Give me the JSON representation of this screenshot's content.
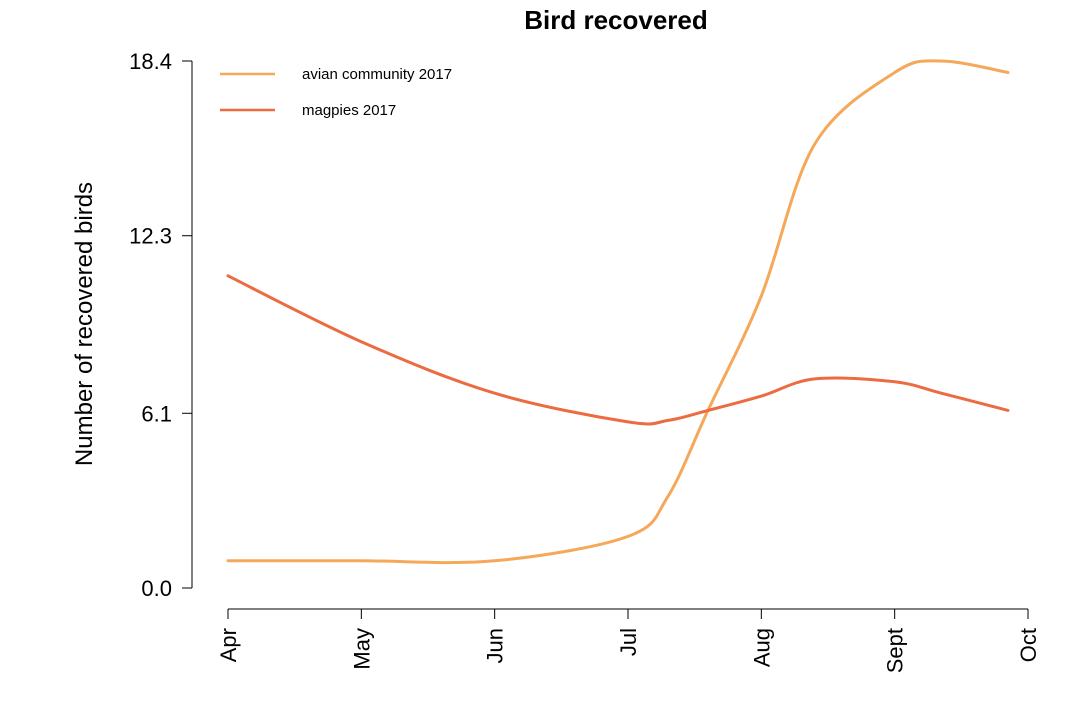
{
  "chart_data": {
    "type": "line",
    "title": "Bird recovered",
    "xlabel": "",
    "ylabel": "Number of recovered birds",
    "categories": [
      "Apr",
      "May",
      "Jun",
      "Jul",
      "Aug",
      "Sept",
      "Oct"
    ],
    "y_ticks": [
      "0.0",
      "6.1",
      "12.3",
      "18.4"
    ],
    "ylim": [
      0,
      18.4
    ],
    "x": [
      0.0,
      1.0,
      2.0,
      3.0,
      3.3,
      3.6,
      4.0,
      4.4,
      5.0,
      5.35,
      5.85
    ],
    "series": [
      {
        "name": "avian community 2017",
        "color": "#F5A85A",
        "values": [
          0.95,
          0.95,
          0.95,
          1.8,
          3.2,
          6.2,
          10.2,
          15.5,
          18.0,
          18.4,
          18.0
        ]
      },
      {
        "name": "magpies 2017",
        "color": "#EC6B40",
        "values": [
          10.9,
          8.6,
          6.8,
          5.8,
          5.85,
          6.2,
          6.7,
          7.3,
          7.2,
          6.8,
          6.2
        ]
      }
    ],
    "legend_position": "top-left",
    "grid": false
  }
}
